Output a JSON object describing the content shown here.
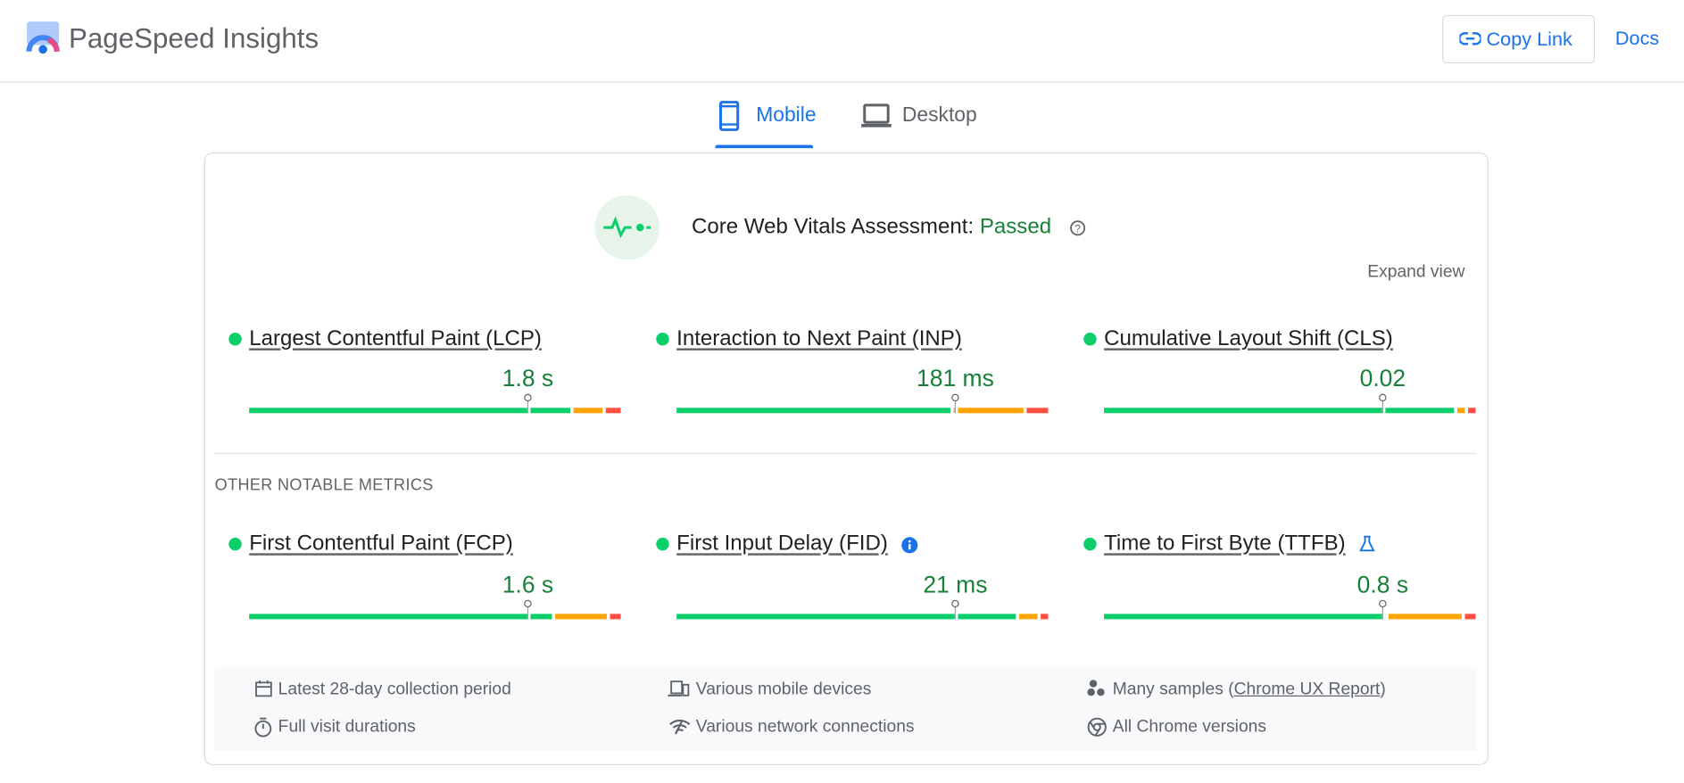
{
  "header": {
    "title": "PageSpeed Insights",
    "copy_link": "Copy Link",
    "docs": "Docs"
  },
  "tabs": [
    "Mobile",
    "Desktop"
  ],
  "assessment": {
    "label": "Core Web Vitals Assessment:",
    "status": "Passed",
    "expand": "Expand view"
  },
  "core_metrics": [
    {
      "name": "Largest Contentful Paint (LCP)",
      "value": "1.8 s",
      "distribution": [
        88,
        8,
        4
      ]
    },
    {
      "name": "Interaction to Next Paint (INP)",
      "value": "181 ms",
      "distribution": [
        75,
        19,
        6
      ]
    },
    {
      "name": "Cumulative Layout Shift (CLS)",
      "value": "0.02",
      "distribution": [
        96,
        2,
        2
      ]
    }
  ],
  "other_heading": "OTHER NOTABLE METRICS",
  "other_metrics": [
    {
      "name": "First Contentful Paint (FCP)",
      "value": "1.6 s",
      "distribution": [
        83,
        14,
        3
      ]
    },
    {
      "name": "First Input Delay (FID)",
      "value": "21 ms",
      "distribution": [
        93,
        5,
        2
      ]
    },
    {
      "name": "Time to First Byte (TTFB)",
      "value": "0.8 s",
      "distribution": [
        77,
        20,
        3
      ]
    }
  ],
  "collection_info": {
    "period": "Latest 28-day collection period",
    "devices": "Various mobile devices",
    "samples_before": "Many samples (",
    "samples_link": "Chrome UX Report",
    "samples_after": ")",
    "durations": "Full visit durations",
    "network": "Various network connections",
    "versions": "All Chrome versions"
  }
}
